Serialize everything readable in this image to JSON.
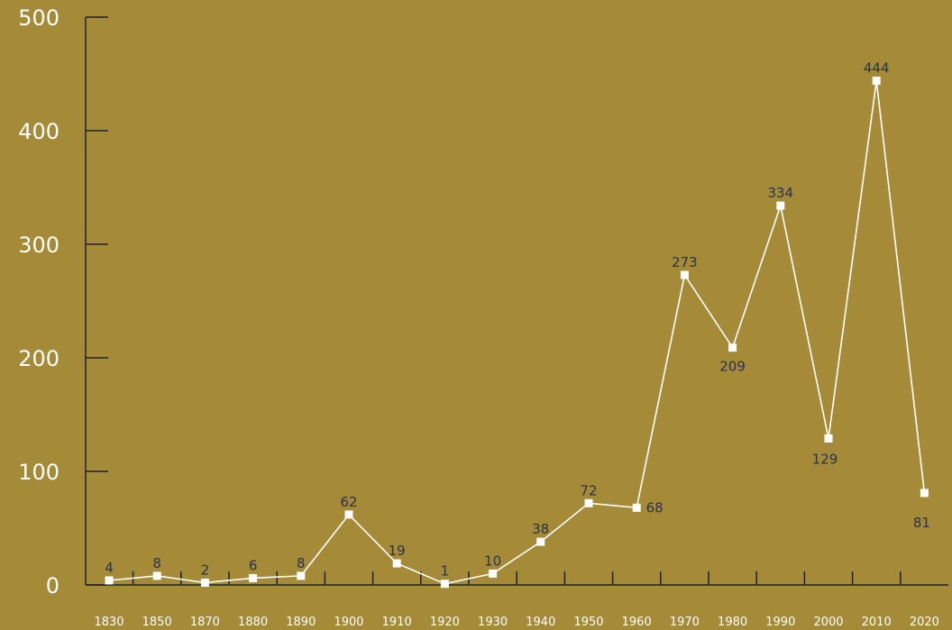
{
  "chart_data": {
    "type": "line",
    "categories": [
      "1830",
      "1850",
      "1870",
      "1880",
      "1890",
      "1900",
      "1910",
      "1920",
      "1930",
      "1940",
      "1950",
      "1960",
      "1970",
      "1980",
      "1990",
      "2000",
      "2010",
      "2020"
    ],
    "values": [
      4,
      8,
      2,
      6,
      8,
      62,
      19,
      1,
      10,
      38,
      72,
      68,
      273,
      209,
      334,
      129,
      444,
      81
    ],
    "data_labels": [
      "4",
      "8",
      "2",
      "6",
      "8",
      "62",
      "19",
      "1",
      "10",
      "38",
      "72",
      "68",
      "273",
      "209",
      "334",
      "129",
      "444",
      "81"
    ],
    "yticks": [
      "0",
      "100",
      "200",
      "300",
      "400",
      "500"
    ],
    "ylim": [
      0,
      500
    ],
    "grid": false,
    "colors": {
      "background": "#a58a38",
      "line": "#ffffff",
      "axis": "#1e2233",
      "data_label": "#283250",
      "tick_label": "#ffffff"
    }
  }
}
